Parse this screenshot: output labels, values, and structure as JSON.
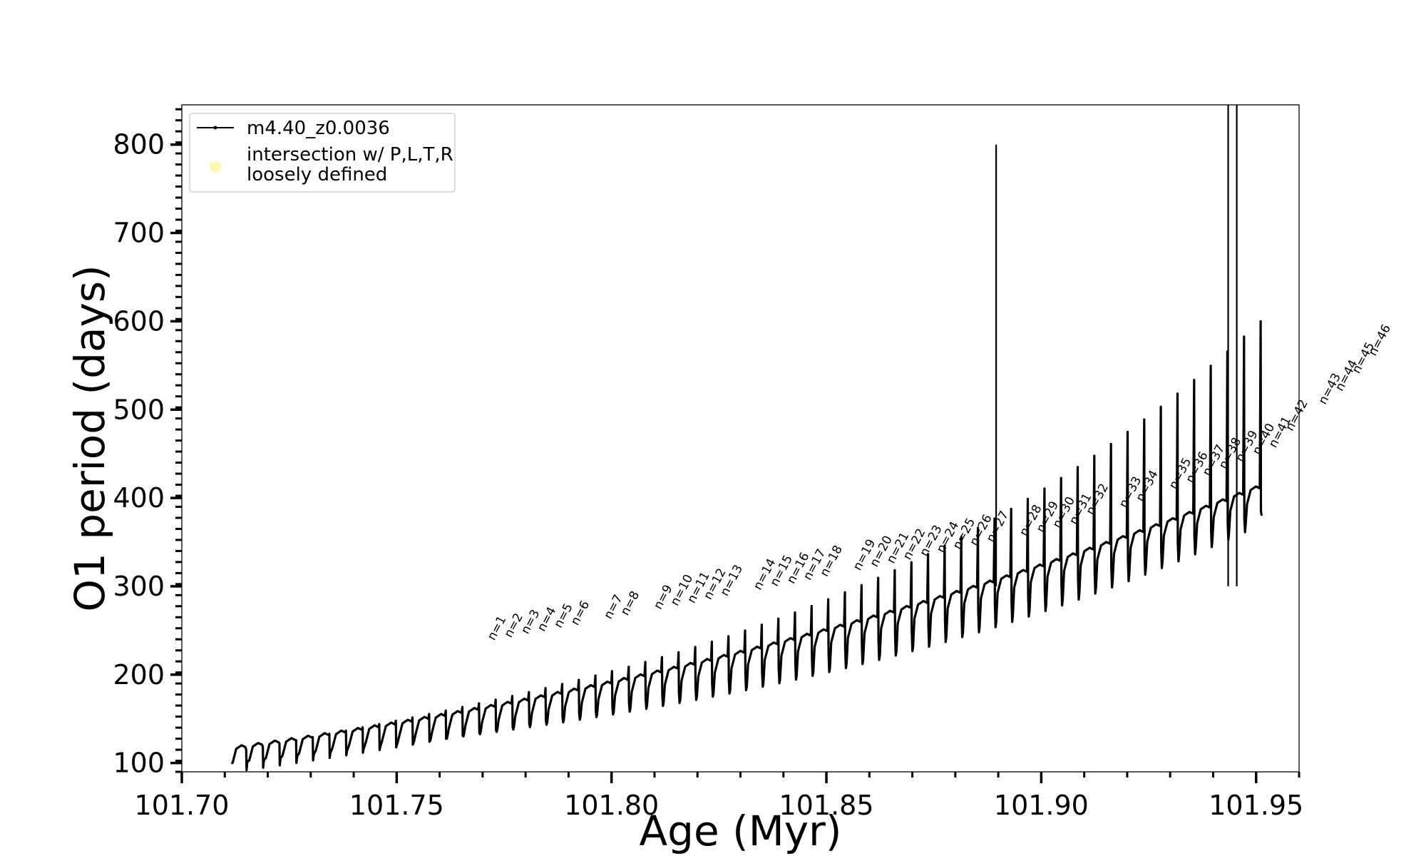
{
  "chart_data": {
    "type": "line",
    "xlabel": "Age (Myr)",
    "ylabel": "O1 period (days)",
    "xlim": [
      101.7,
      101.96
    ],
    "ylim": [
      90,
      845
    ],
    "xticks": [
      101.7,
      101.75,
      101.8,
      101.85,
      101.9,
      101.95
    ],
    "xtick_labels": [
      "101.70",
      "101.75",
      "101.80",
      "101.85",
      "101.90",
      "101.95"
    ],
    "yticks": [
      100,
      200,
      300,
      400,
      500,
      600,
      700,
      800
    ],
    "ytick_labels": [
      "100",
      "200",
      "300",
      "400",
      "500",
      "600",
      "700",
      "800"
    ],
    "grid": false,
    "legend": {
      "placement": "top-left",
      "entries": [
        {
          "label": "m4.40_z0.0036",
          "marker": "line-dot",
          "color": "#000000"
        },
        {
          "label": "intersection w/ P,L,T,R",
          "label2": "loosely defined",
          "marker": "circle",
          "color": "#fff7b0"
        }
      ]
    },
    "series": [
      {
        "name": "m4.40_z0.0036",
        "color": "#000000",
        "cycle_start_age": 101.7115,
        "cycle_step_myr": 0.00387,
        "n_cycles": 62,
        "baseline_period_start": 112,
        "baseline_period_end": 405,
        "peak_period_start": 115,
        "peak_period_end": 600,
        "trough_period_start": 100,
        "trough_period_end": 370,
        "spikes": [
          {
            "age": 101.8895,
            "period": 800
          },
          {
            "age": 101.9435,
            "period": 845
          },
          {
            "age": 101.9455,
            "period": 845
          }
        ]
      }
    ],
    "annotations": [
      {
        "text": "n=1",
        "age": 101.7727,
        "period": 238
      },
      {
        "text": "n=2",
        "age": 101.7766,
        "period": 241
      },
      {
        "text": "n=3",
        "age": 101.7805,
        "period": 245
      },
      {
        "text": "n=4",
        "age": 101.7843,
        "period": 248
      },
      {
        "text": "n=5",
        "age": 101.7882,
        "period": 252
      },
      {
        "text": "n=6",
        "age": 101.7921,
        "period": 255
      },
      {
        "text": "n=7",
        "age": 101.7998,
        "period": 262
      },
      {
        "text": "n=8",
        "age": 101.8037,
        "period": 266
      },
      {
        "text": "n=9",
        "age": 101.8114,
        "period": 273
      },
      {
        "text": "n=10",
        "age": 101.8153,
        "period": 277
      },
      {
        "text": "n=11",
        "age": 101.8192,
        "period": 280
      },
      {
        "text": "n=12",
        "age": 101.823,
        "period": 284
      },
      {
        "text": "n=13",
        "age": 101.8269,
        "period": 288
      },
      {
        "text": "n=14",
        "age": 101.8346,
        "period": 295
      },
      {
        "text": "n=15",
        "age": 101.8385,
        "period": 299
      },
      {
        "text": "n=16",
        "age": 101.8424,
        "period": 302
      },
      {
        "text": "n=17",
        "age": 101.8462,
        "period": 306
      },
      {
        "text": "n=18",
        "age": 101.8501,
        "period": 310
      },
      {
        "text": "n=19",
        "age": 101.8578,
        "period": 317
      },
      {
        "text": "n=20",
        "age": 101.8617,
        "period": 321
      },
      {
        "text": "n=21",
        "age": 101.8656,
        "period": 325
      },
      {
        "text": "n=22",
        "age": 101.8694,
        "period": 329
      },
      {
        "text": "n=23",
        "age": 101.8733,
        "period": 333
      },
      {
        "text": "n=24",
        "age": 101.8772,
        "period": 337
      },
      {
        "text": "n=25",
        "age": 101.881,
        "period": 341
      },
      {
        "text": "n=26",
        "age": 101.8849,
        "period": 345
      },
      {
        "text": "n=27",
        "age": 101.8888,
        "period": 349
      },
      {
        "text": "n=28",
        "age": 101.8965,
        "period": 356
      },
      {
        "text": "n=29",
        "age": 101.9004,
        "period": 360
      },
      {
        "text": "n=30",
        "age": 101.9042,
        "period": 365
      },
      {
        "text": "n=31",
        "age": 101.9081,
        "period": 369
      },
      {
        "text": "n=32",
        "age": 101.912,
        "period": 380
      },
      {
        "text": "n=33",
        "age": 101.9197,
        "period": 388
      },
      {
        "text": "n=34",
        "age": 101.9236,
        "period": 395
      },
      {
        "text": "n=35",
        "age": 101.9313,
        "period": 409
      },
      {
        "text": "n=36",
        "age": 101.9352,
        "period": 416
      },
      {
        "text": "n=37",
        "age": 101.9391,
        "period": 424
      },
      {
        "text": "n=38",
        "age": 101.9429,
        "period": 432
      },
      {
        "text": "n=39",
        "age": 101.9468,
        "period": 440
      },
      {
        "text": "n=40",
        "age": 101.9507,
        "period": 448
      },
      {
        "text": "n=41",
        "age": 101.9545,
        "period": 456
      },
      {
        "text": "n=42",
        "age": 101.9584,
        "period": 475
      },
      {
        "text": "n=43",
        "age": 101.9661,
        "period": 505
      },
      {
        "text": "n=44",
        "age": 101.97,
        "period": 520
      },
      {
        "text": "n=45",
        "age": 101.9739,
        "period": 540
      },
      {
        "text": "n=46",
        "age": 101.9777,
        "period": 560
      }
    ]
  }
}
